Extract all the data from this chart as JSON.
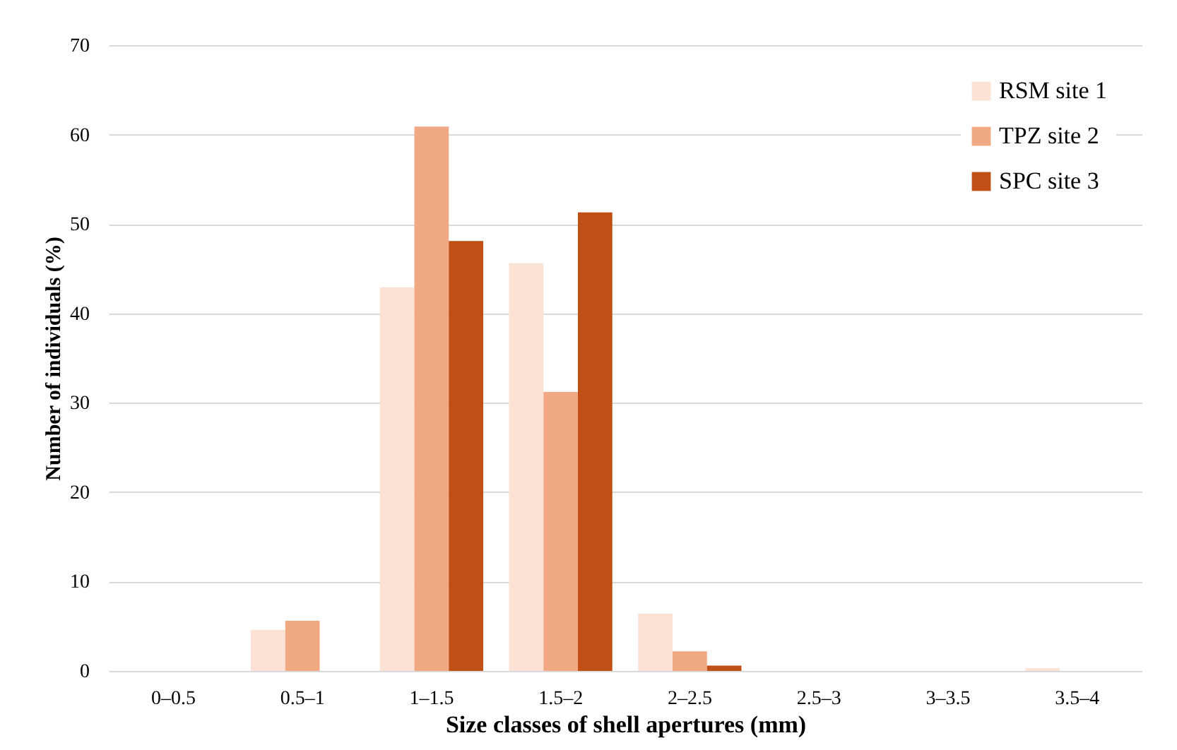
{
  "chart_data": {
    "type": "bar",
    "xlabel": "Size classes of shell apertures (mm)",
    "ylabel": "Number of individuals (%)",
    "categories": [
      "0–0.5",
      "0.5–1",
      "1–1.5",
      "1.5–2",
      "2–2.5",
      "2.5–3",
      "3–3.5",
      "3.5–4"
    ],
    "series": [
      {
        "name": "RSM site 1",
        "color": "#fbe2d5",
        "values": [
          0,
          4.6,
          42.9,
          45.6,
          6.4,
          0,
          0,
          0.3
        ]
      },
      {
        "name": "TPZ site 2",
        "color": "#f1a983",
        "values": [
          0,
          5.6,
          60.9,
          31.2,
          2.2,
          0,
          0,
          0
        ]
      },
      {
        "name": "SPC site 3",
        "color": "#c04f15",
        "values": [
          0,
          0,
          48.1,
          51.3,
          0.6,
          0,
          0,
          0
        ]
      }
    ],
    "ylim": [
      0,
      70
    ],
    "yticks": [
      0,
      10,
      20,
      30,
      40,
      50,
      60,
      70
    ],
    "grid": "y",
    "legend": "top right"
  }
}
